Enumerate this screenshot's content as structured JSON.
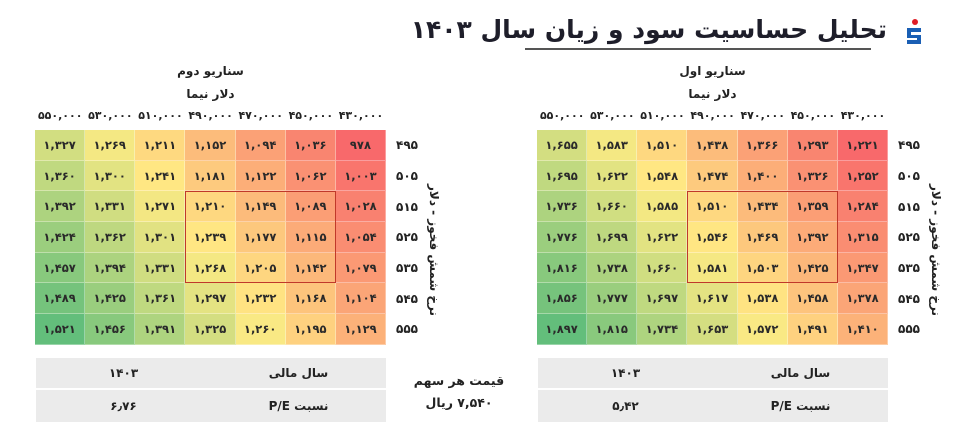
{
  "header": {
    "title": "تحلیل حساسیت سود و زیان سال ۱۴۰۳",
    "logo_icon": "company-logo-icon",
    "colors": {
      "logo_blue": "#1a5fb4",
      "logo_red": "#e01b24",
      "title": "#1e1e2a"
    }
  },
  "share_price": {
    "label": "قیمت هر سهم",
    "value": "۷,۵۴۰ ریال"
  },
  "scenarios": [
    {
      "title": "سناریو اول",
      "x_axis_title": "دلار نیما",
      "y_axis_title": "نرخ شمش فخوز - دلار",
      "columns": [
        "۴۳۰,۰۰۰",
        "۴۵۰,۰۰۰",
        "۴۷۰,۰۰۰",
        "۴۹۰,۰۰۰",
        "۵۱۰,۰۰۰",
        "۵۳۰,۰۰۰",
        "۵۵۰,۰۰۰"
      ],
      "rows": [
        "۴۹۵",
        "۵۰۵",
        "۵۱۵",
        "۵۲۵",
        "۵۳۵",
        "۵۴۵",
        "۵۵۵"
      ],
      "cells": [
        [
          "۱,۲۲۱",
          "۱,۲۹۳",
          "۱,۳۶۶",
          "۱,۴۳۸",
          "۱,۵۱۰",
          "۱,۵۸۳",
          "۱,۶۵۵"
        ],
        [
          "۱,۲۵۲",
          "۱,۳۲۶",
          "۱,۴۰۰",
          "۱,۴۷۴",
          "۱,۵۴۸",
          "۱,۶۲۲",
          "۱,۶۹۵"
        ],
        [
          "۱,۲۸۴",
          "۱,۳۵۹",
          "۱,۴۳۴",
          "۱,۵۱۰",
          "۱,۵۸۵",
          "۱,۶۶۰",
          "۱,۷۳۶"
        ],
        [
          "۱,۳۱۵",
          "۱,۳۹۲",
          "۱,۴۶۹",
          "۱,۵۴۶",
          "۱,۶۲۲",
          "۱,۶۹۹",
          "۱,۷۷۶"
        ],
        [
          "۱,۳۴۷",
          "۱,۴۲۵",
          "۱,۵۰۳",
          "۱,۵۸۱",
          "۱,۶۶۰",
          "۱,۷۳۸",
          "۱,۸۱۶"
        ],
        [
          "۱,۳۷۸",
          "۱,۴۵۸",
          "۱,۵۳۸",
          "۱,۶۱۷",
          "۱,۶۹۷",
          "۱,۷۷۷",
          "۱,۸۵۶"
        ],
        [
          "۱,۴۱۰",
          "۱,۴۹۱",
          "۱,۵۷۲",
          "۱,۶۵۳",
          "۱,۷۳۴",
          "۱,۸۱۵",
          "۱,۸۹۷"
        ]
      ],
      "info": [
        {
          "label": "سال مالی",
          "value": "۱۴۰۳"
        },
        {
          "label": "نسبت P/E",
          "value": "۵٫۴۲"
        }
      ]
    },
    {
      "title": "سناریو دوم",
      "x_axis_title": "دلار نیما",
      "y_axis_title": "نرخ شمش فخوز - دلار",
      "columns": [
        "۴۳۰,۰۰۰",
        "۴۵۰,۰۰۰",
        "۴۷۰,۰۰۰",
        "۴۹۰,۰۰۰",
        "۵۱۰,۰۰۰",
        "۵۳۰,۰۰۰",
        "۵۵۰,۰۰۰"
      ],
      "rows": [
        "۴۹۵",
        "۵۰۵",
        "۵۱۵",
        "۵۲۵",
        "۵۳۵",
        "۵۴۵",
        "۵۵۵"
      ],
      "cells": [
        [
          "۹۷۸",
          "۱,۰۳۶",
          "۱,۰۹۴",
          "۱,۱۵۲",
          "۱,۲۱۱",
          "۱,۲۶۹",
          "۱,۳۲۷"
        ],
        [
          "۱,۰۰۳",
          "۱,۰۶۲",
          "۱,۱۲۲",
          "۱,۱۸۱",
          "۱,۲۴۱",
          "۱,۳۰۰",
          "۱,۳۶۰"
        ],
        [
          "۱,۰۲۸",
          "۱,۰۸۹",
          "۱,۱۴۹",
          "۱,۲۱۰",
          "۱,۲۷۱",
          "۱,۳۳۱",
          "۱,۳۹۲"
        ],
        [
          "۱,۰۵۴",
          "۱,۱۱۵",
          "۱,۱۷۷",
          "۱,۲۳۹",
          "۱,۳۰۱",
          "۱,۳۶۲",
          "۱,۴۲۴"
        ],
        [
          "۱,۰۷۹",
          "۱,۱۴۲",
          "۱,۲۰۵",
          "۱,۲۶۸",
          "۱,۳۳۱",
          "۱,۳۹۴",
          "۱,۴۵۷"
        ],
        [
          "۱,۱۰۴",
          "۱,۱۶۸",
          "۱,۲۳۲",
          "۱,۲۹۷",
          "۱,۳۶۱",
          "۱,۴۲۵",
          "۱,۴۸۹"
        ],
        [
          "۱,۱۲۹",
          "۱,۱۹۵",
          "۱,۲۶۰",
          "۱,۳۲۵",
          "۱,۳۹۱",
          "۱,۴۵۶",
          "۱,۵۲۱"
        ]
      ],
      "info": [
        {
          "label": "سال مالی",
          "value": "۱۴۰۳"
        },
        {
          "label": "نسبت P/E",
          "value": "۶٫۷۶"
        }
      ]
    }
  ],
  "highlight": {
    "rows": [
      2,
      4
    ],
    "cols": [
      1,
      3
    ],
    "color": "#c0392b"
  },
  "color_scale": {
    "low": "#f8696b",
    "mid": "#ffeb84",
    "high": "#63be7b"
  },
  "chart_data": [
    {
      "type": "heatmap",
      "title": "سناریو اول",
      "xlabel": "دلار نیما",
      "ylabel": "نرخ شمش فخوز - دلار",
      "x": [
        430000,
        450000,
        470000,
        490000,
        510000,
        530000,
        550000
      ],
      "y": [
        495,
        505,
        515,
        525,
        535,
        545,
        555
      ],
      "values": [
        [
          1221,
          1293,
          1366,
          1438,
          1510,
          1583,
          1655
        ],
        [
          1252,
          1326,
          1400,
          1474,
          1548,
          1622,
          1695
        ],
        [
          1284,
          1359,
          1434,
          1510,
          1585,
          1660,
          1736
        ],
        [
          1315,
          1392,
          1469,
          1546,
          1622,
          1699,
          1776
        ],
        [
          1347,
          1425,
          1503,
          1581,
          1660,
          1738,
          1816
        ],
        [
          1378,
          1458,
          1538,
          1617,
          1697,
          1777,
          1856
        ],
        [
          1410,
          1491,
          1572,
          1653,
          1734,
          1815,
          1897
        ]
      ],
      "fiscal_year": 1403,
      "pe_ratio": 5.42
    },
    {
      "type": "heatmap",
      "title": "سناریو دوم",
      "xlabel": "دلار نیما",
      "ylabel": "نرخ شمش فخوز - دلار",
      "x": [
        430000,
        450000,
        470000,
        490000,
        510000,
        530000,
        550000
      ],
      "y": [
        495,
        505,
        515,
        525,
        535,
        545,
        555
      ],
      "values": [
        [
          978,
          1036,
          1094,
          1152,
          1211,
          1269,
          1327
        ],
        [
          1003,
          1062,
          1122,
          1181,
          1241,
          1300,
          1360
        ],
        [
          1028,
          1089,
          1149,
          1210,
          1271,
          1331,
          1392
        ],
        [
          1054,
          1115,
          1177,
          1239,
          1301,
          1362,
          1424
        ],
        [
          1079,
          1142,
          1205,
          1268,
          1331,
          1394,
          1457
        ],
        [
          1104,
          1168,
          1232,
          1297,
          1361,
          1425,
          1489
        ],
        [
          1129,
          1195,
          1260,
          1325,
          1391,
          1456,
          1521
        ]
      ],
      "fiscal_year": 1403,
      "pe_ratio": 6.76
    }
  ]
}
